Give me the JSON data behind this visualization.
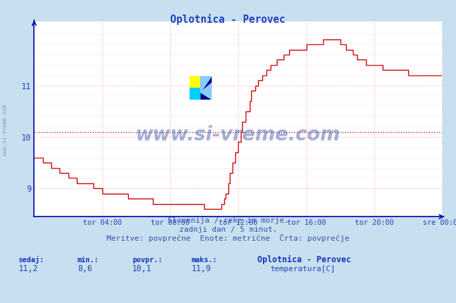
{
  "title": "Oplotnica - Perovec",
  "fig_bg_color": "#c8dff0",
  "plot_bg_color": "#ffffff",
  "line_color": "#cc0000",
  "grid_color": "#ffaaaa",
  "avg_line_color": "#cc0000",
  "avg_line_style": "--",
  "avg_value": 10.1,
  "ylim_min": 8.45,
  "ylim_max": 12.25,
  "yticks": [
    9,
    10,
    11
  ],
  "xlabel_ticks": [
    "tor 04:00",
    "tor 08:00",
    "tor 12:00",
    "tor 16:00",
    "tor 20:00",
    "sre 00:00"
  ],
  "footer_line1": "Slovenija / reke in morje.",
  "footer_line2": "zadnji dan / 5 minut.",
  "footer_line3": "Meritve: povprečne  Enote: metrične  Črta: povprečje",
  "stats_sedaj": "11,2",
  "stats_min": "8,6",
  "stats_povpr": "10,1",
  "stats_maks": "11,9",
  "legend_label": "temperatura[C]",
  "legend_station": "Oplotnica - Perovec",
  "watermark_text": "www.si-vreme.com",
  "watermark_color": "#3355aa",
  "watermark_alpha": 0.45,
  "left_label": "www.si-vreme.com",
  "title_color": "#2244bb",
  "axis_color": "#0000aa",
  "tick_color": "#2244bb",
  "footer_color": "#3355aa",
  "stats_label_color": "#1133bb",
  "stats_val_color": "#2244bb",
  "n_points": 288
}
